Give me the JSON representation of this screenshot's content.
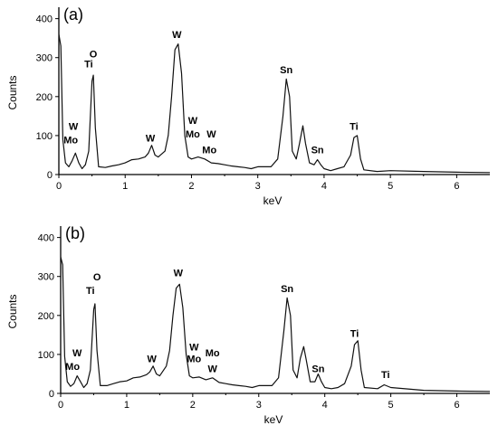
{
  "chart_data": [
    {
      "type": "line",
      "panel_label": "(a)",
      "xlabel": "keV",
      "ylabel": "Counts",
      "xlim": [
        0,
        6.5
      ],
      "ylim": [
        0,
        420
      ],
      "x_ticks": [
        "0",
        "1",
        "2",
        "3",
        "4",
        "5",
        "6"
      ],
      "y_ticks": [
        "0",
        "100",
        "200",
        "300",
        "400"
      ],
      "grid": false,
      "legend": "none",
      "series": [
        {
          "points": [
            [
              0.0,
              360
            ],
            [
              0.03,
              330
            ],
            [
              0.06,
              90
            ],
            [
              0.1,
              30
            ],
            [
              0.15,
              20
            ],
            [
              0.2,
              35
            ],
            [
              0.25,
              55
            ],
            [
              0.3,
              30
            ],
            [
              0.35,
              15
            ],
            [
              0.4,
              25
            ],
            [
              0.45,
              60
            ],
            [
              0.5,
              240
            ],
            [
              0.52,
              255
            ],
            [
              0.55,
              120
            ],
            [
              0.6,
              20
            ],
            [
              0.7,
              18
            ],
            [
              0.8,
              22
            ],
            [
              0.9,
              25
            ],
            [
              1.0,
              30
            ],
            [
              1.1,
              38
            ],
            [
              1.2,
              40
            ],
            [
              1.3,
              45
            ],
            [
              1.35,
              55
            ],
            [
              1.4,
              75
            ],
            [
              1.45,
              50
            ],
            [
              1.5,
              45
            ],
            [
              1.6,
              60
            ],
            [
              1.65,
              100
            ],
            [
              1.7,
              200
            ],
            [
              1.75,
              320
            ],
            [
              1.8,
              335
            ],
            [
              1.85,
              260
            ],
            [
              1.9,
              100
            ],
            [
              1.95,
              45
            ],
            [
              2.0,
              40
            ],
            [
              2.1,
              45
            ],
            [
              2.2,
              40
            ],
            [
              2.3,
              30
            ],
            [
              2.4,
              28
            ],
            [
              2.5,
              25
            ],
            [
              2.6,
              22
            ],
            [
              2.7,
              20
            ],
            [
              2.8,
              18
            ],
            [
              2.9,
              15
            ],
            [
              3.0,
              20
            ],
            [
              3.1,
              20
            ],
            [
              3.2,
              20
            ],
            [
              3.3,
              40
            ],
            [
              3.38,
              150
            ],
            [
              3.43,
              245
            ],
            [
              3.48,
              200
            ],
            [
              3.52,
              60
            ],
            [
              3.58,
              40
            ],
            [
              3.63,
              80
            ],
            [
              3.68,
              125
            ],
            [
              3.72,
              80
            ],
            [
              3.78,
              30
            ],
            [
              3.85,
              25
            ],
            [
              3.9,
              38
            ],
            [
              3.95,
              25
            ],
            [
              4.0,
              15
            ],
            [
              4.1,
              10
            ],
            [
              4.2,
              15
            ],
            [
              4.3,
              20
            ],
            [
              4.4,
              50
            ],
            [
              4.45,
              95
            ],
            [
              4.5,
              100
            ],
            [
              4.55,
              40
            ],
            [
              4.6,
              12
            ],
            [
              4.8,
              8
            ],
            [
              5.0,
              10
            ],
            [
              5.5,
              8
            ],
            [
              6.0,
              6
            ],
            [
              6.5,
              5
            ]
          ]
        }
      ],
      "annotations": [
        {
          "text": "O",
          "x": 0.52,
          "y": 300
        },
        {
          "text": "Ti",
          "x": 0.45,
          "y": 275
        },
        {
          "text": "W",
          "x": 1.78,
          "y": 350
        },
        {
          "text": "Sn",
          "x": 3.43,
          "y": 260
        },
        {
          "text": "W",
          "x": 0.22,
          "y": 115
        },
        {
          "text": "Mo",
          "x": 0.18,
          "y": 80
        },
        {
          "text": "W",
          "x": 1.38,
          "y": 85
        },
        {
          "text": "W",
          "x": 2.02,
          "y": 130
        },
        {
          "text": "Mo",
          "x": 2.02,
          "y": 95
        },
        {
          "text": "W",
          "x": 2.3,
          "y": 95
        },
        {
          "text": "Mo",
          "x": 2.27,
          "y": 55
        },
        {
          "text": "Sn",
          "x": 3.9,
          "y": 55
        },
        {
          "text": "Ti",
          "x": 4.45,
          "y": 115
        }
      ]
    },
    {
      "type": "line",
      "panel_label": "(b)",
      "xlabel": "keV",
      "ylabel": "Counts",
      "xlim": [
        0,
        6.5
      ],
      "ylim": [
        0,
        420
      ],
      "x_ticks": [
        "0",
        "1",
        "2",
        "3",
        "4",
        "5",
        "6"
      ],
      "y_ticks": [
        "0",
        "100",
        "200",
        "300",
        "400"
      ],
      "grid": false,
      "legend": "none",
      "series": [
        {
          "points": [
            [
              0.0,
              350
            ],
            [
              0.03,
              330
            ],
            [
              0.06,
              95
            ],
            [
              0.1,
              30
            ],
            [
              0.15,
              18
            ],
            [
              0.2,
              25
            ],
            [
              0.25,
              45
            ],
            [
              0.3,
              30
            ],
            [
              0.35,
              15
            ],
            [
              0.4,
              25
            ],
            [
              0.45,
              60
            ],
            [
              0.5,
              215
            ],
            [
              0.52,
              230
            ],
            [
              0.55,
              110
            ],
            [
              0.6,
              20
            ],
            [
              0.7,
              20
            ],
            [
              0.8,
              25
            ],
            [
              0.9,
              30
            ],
            [
              1.0,
              32
            ],
            [
              1.1,
              40
            ],
            [
              1.2,
              42
            ],
            [
              1.3,
              48
            ],
            [
              1.35,
              55
            ],
            [
              1.4,
              70
            ],
            [
              1.45,
              50
            ],
            [
              1.5,
              45
            ],
            [
              1.6,
              70
            ],
            [
              1.65,
              110
            ],
            [
              1.7,
              200
            ],
            [
              1.75,
              270
            ],
            [
              1.8,
              280
            ],
            [
              1.85,
              220
            ],
            [
              1.9,
              100
            ],
            [
              1.95,
              45
            ],
            [
              2.0,
              40
            ],
            [
              2.1,
              42
            ],
            [
              2.2,
              35
            ],
            [
              2.3,
              40
            ],
            [
              2.4,
              28
            ],
            [
              2.5,
              25
            ],
            [
              2.6,
              22
            ],
            [
              2.7,
              20
            ],
            [
              2.8,
              18
            ],
            [
              2.9,
              15
            ],
            [
              3.0,
              20
            ],
            [
              3.1,
              20
            ],
            [
              3.2,
              20
            ],
            [
              3.3,
              40
            ],
            [
              3.38,
              160
            ],
            [
              3.43,
              245
            ],
            [
              3.48,
              200
            ],
            [
              3.52,
              60
            ],
            [
              3.58,
              40
            ],
            [
              3.63,
              90
            ],
            [
              3.68,
              120
            ],
            [
              3.72,
              85
            ],
            [
              3.78,
              30
            ],
            [
              3.85,
              30
            ],
            [
              3.9,
              50
            ],
            [
              3.95,
              30
            ],
            [
              4.0,
              15
            ],
            [
              4.1,
              12
            ],
            [
              4.2,
              15
            ],
            [
              4.3,
              25
            ],
            [
              4.4,
              70
            ],
            [
              4.45,
              125
            ],
            [
              4.5,
              135
            ],
            [
              4.55,
              60
            ],
            [
              4.6,
              15
            ],
            [
              4.8,
              12
            ],
            [
              4.9,
              22
            ],
            [
              5.0,
              15
            ],
            [
              5.5,
              8
            ],
            [
              6.0,
              6
            ],
            [
              6.5,
              5
            ]
          ]
        }
      ],
      "annotations": [
        {
          "text": "O",
          "x": 0.55,
          "y": 290
        },
        {
          "text": "Ti",
          "x": 0.45,
          "y": 255
        },
        {
          "text": "W",
          "x": 1.78,
          "y": 300
        },
        {
          "text": "Sn",
          "x": 3.43,
          "y": 260
        },
        {
          "text": "W",
          "x": 0.25,
          "y": 95
        },
        {
          "text": "Mo",
          "x": 0.18,
          "y": 60
        },
        {
          "text": "W",
          "x": 1.38,
          "y": 80
        },
        {
          "text": "W",
          "x": 2.02,
          "y": 110
        },
        {
          "text": "Mo",
          "x": 2.02,
          "y": 80
        },
        {
          "text": "Mo",
          "x": 2.3,
          "y": 95
        },
        {
          "text": "W",
          "x": 2.3,
          "y": 55
        },
        {
          "text": "Sn",
          "x": 3.9,
          "y": 55
        },
        {
          "text": "Ti",
          "x": 4.45,
          "y": 145
        },
        {
          "text": "Ti",
          "x": 4.92,
          "y": 40
        }
      ]
    }
  ]
}
